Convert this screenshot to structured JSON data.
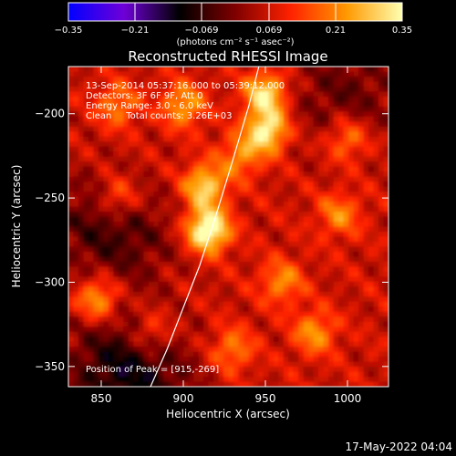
{
  "chart_data": {
    "type": "heatmap",
    "title": "Reconstructed RHESSI Image",
    "xlabel": "Heliocentric X (arcsec)",
    "ylabel": "Heliocentric Y (arcsec)",
    "xlim": [
      830,
      1025
    ],
    "ylim": [
      -362,
      -172
    ],
    "x_ticks": [
      850,
      900,
      950,
      1000
    ],
    "y_ticks": [
      -200,
      -250,
      -300,
      -350
    ],
    "colorbar": {
      "label": "(photons cm⁻² s⁻¹ asec⁻²)",
      "range": [
        -0.35,
        0.35
      ],
      "ticks": [
        "−0.35",
        "−0.21",
        "−0.069",
        "0.069",
        "0.21",
        "0.35"
      ],
      "colors": [
        "#0000ff",
        "#6f00d8",
        "#000000",
        "#7f0000",
        "#ff2200",
        "#ff9900",
        "#ffffb0"
      ]
    },
    "annotations": [
      "13-Sep-2014 05:37:16.000 to 05:39:12.000",
      "Detectors: 3F 6F 9F, Att 0",
      "Energy Range: 3.0 - 6.0 keV",
      "Clean     Total counts: 3.26E+03"
    ],
    "peak_label": "Position of Peak = [915,-269]",
    "peak": [
      915,
      -269
    ],
    "sources": [
      {
        "x": 915,
        "y": -269,
        "intensity": 0.35
      },
      {
        "x": 913,
        "y": -243,
        "intensity": 0.24
      },
      {
        "x": 950,
        "y": -188,
        "intensity": 0.26
      },
      {
        "x": 951,
        "y": -210,
        "intensity": 0.28
      },
      {
        "x": 900,
        "y": -195,
        "intensity": 0.18
      },
      {
        "x": 860,
        "y": -195,
        "intensity": 0.14
      },
      {
        "x": 848,
        "y": -310,
        "intensity": 0.2
      },
      {
        "x": 860,
        "y": -250,
        "intensity": 0.14
      },
      {
        "x": 980,
        "y": -330,
        "intensity": 0.16
      },
      {
        "x": 960,
        "y": -300,
        "intensity": 0.15
      },
      {
        "x": 1000,
        "y": -215,
        "intensity": 0.15
      },
      {
        "x": 995,
        "y": -260,
        "intensity": 0.14
      },
      {
        "x": 930,
        "y": -340,
        "intensity": 0.14
      },
      {
        "x": 880,
        "y": -330,
        "intensity": 0.12
      },
      {
        "x": 935,
        "y": -225,
        "intensity": 0.15
      }
    ],
    "negative_regions": [
      {
        "x": 855,
        "y": -350,
        "intensity": -0.12
      },
      {
        "x": 880,
        "y": -358,
        "intensity": -0.1
      },
      {
        "x": 845,
        "y": -265,
        "intensity": -0.09
      },
      {
        "x": 870,
        "y": -275,
        "intensity": -0.07
      },
      {
        "x": 1010,
        "y": -185,
        "intensity": -0.06
      },
      {
        "x": 985,
        "y": -190,
        "intensity": -0.05
      }
    ],
    "limb": [
      [
        880,
        -362
      ],
      [
        890,
        -340
      ],
      [
        900,
        -315
      ],
      [
        910,
        -290
      ],
      [
        920,
        -260
      ],
      [
        930,
        -228
      ],
      [
        940,
        -195
      ],
      [
        946,
        -172
      ]
    ]
  },
  "footer": {
    "date": "17-May-2022 04:04"
  }
}
